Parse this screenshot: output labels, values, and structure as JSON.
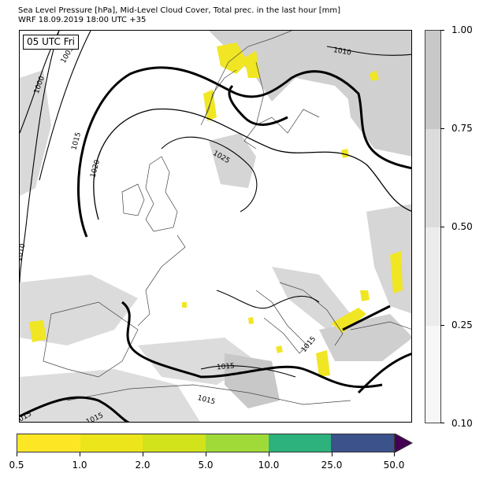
{
  "header": {
    "title_line1": "Sea Level Pressure [hPa], Mid-Level Cloud Cover, Total prec. in the last hour [mm]",
    "title_line2": "WRF 18.09.2019 18:00 UTC +35"
  },
  "map": {
    "time_label": "05 UTC Fri",
    "isobar_labels": [
      "1005",
      "1000",
      "1010",
      "1015",
      "1020",
      "1025",
      "1010",
      "1015",
      "1015",
      "1015",
      "1015",
      "1015"
    ],
    "colors": {
      "cloud": "#c8c8c8",
      "cloud_light": "#e2e2e2",
      "precip": "#f0e623",
      "isobar": "#000000",
      "coast": "#444444"
    }
  },
  "cloud_colorbar": {
    "ticks": [
      "1.00",
      "0.75",
      "0.50",
      "0.25",
      "0.10"
    ],
    "colors": [
      "#c8c8c8",
      "#dcdcdc",
      "#ececec",
      "#f7f7f7"
    ]
  },
  "precip_colorbar": {
    "ticks": [
      "0.5",
      "1.0",
      "2.0",
      "5.0",
      "10.0",
      "25.0",
      "50.0"
    ],
    "colors": [
      "#fde725",
      "#ede51b",
      "#d2e21b",
      "#a0da39",
      "#2db27d",
      "#3b528b",
      "#440154"
    ]
  }
}
